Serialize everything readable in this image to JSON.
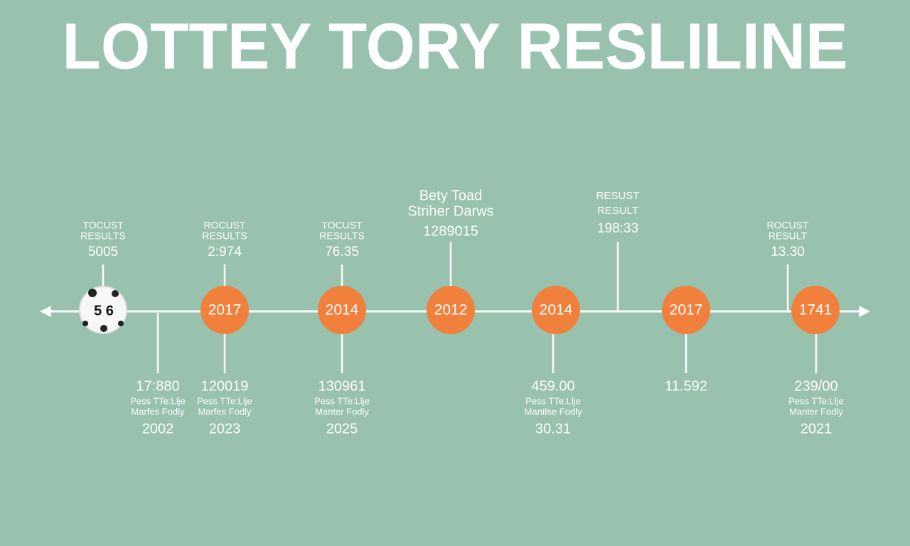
{
  "title": "LOTTEY TORY RESLILINE",
  "ball": {
    "label": "5 6"
  },
  "nodes": [
    "2017",
    "2014",
    "2012",
    "2014",
    "2017",
    "1741"
  ],
  "above": [
    [
      "TOCUST",
      "RESULTS",
      "5005"
    ],
    [
      "ROCUST",
      "RESULTS",
      "2:974"
    ],
    [
      "TOCUST",
      "RESULTS",
      "76.35"
    ],
    [
      "Bety Toad",
      "Striher Darws",
      "1289015"
    ],
    [
      "RESUST",
      "RESULT",
      "198:33"
    ],
    [
      "ROCUST",
      "RESULT",
      "13.30"
    ]
  ],
  "below": [
    [
      "17:880",
      "Pess TTe:Llje",
      "Marfes Fodly",
      "2002"
    ],
    [
      "120019",
      "Pess TTe:Llje",
      "Marfes Fodly",
      "2023"
    ],
    [
      "130961",
      "Pess TTe:Llje",
      "Manter Fodly",
      "2025"
    ],
    [
      "459.00",
      "Pess TTe:Llje",
      "Mantlse Fodly",
      "30.31"
    ],
    [
      "11.592"
    ],
    [
      "239/00",
      "Pess TTe:Llje",
      "Manter Fodly",
      "2021"
    ]
  ]
}
